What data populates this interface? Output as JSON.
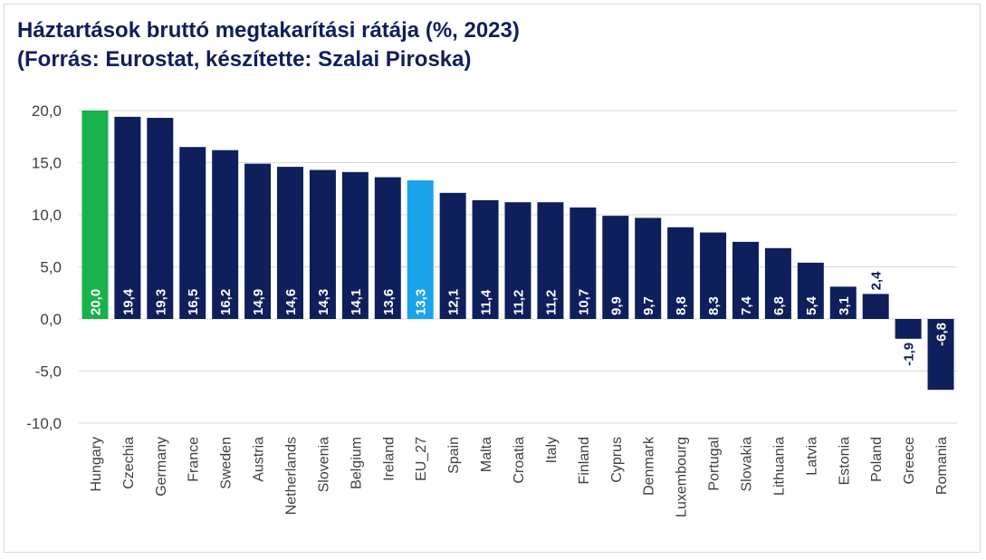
{
  "title_line1": "Háztartások bruttó megtakarítási rátája (%, 2023)",
  "title_line2": "(Forrás: Eurostat, készítette: Szalai Piroska)",
  "colors": {
    "default": "#0f1f5c",
    "highlight_hungary": "#1ab04c",
    "highlight_eu": "#1ba3e8",
    "grid": "#d9d9d9",
    "inside_label": "#ffffff",
    "outside_label": "#0f1f5c"
  },
  "chart_data": {
    "type": "bar",
    "categories": [
      "Hungary",
      "Czechia",
      "Germany",
      "France",
      "Sweden",
      "Austria",
      "Netherlands",
      "Slovenia",
      "Belgium",
      "Ireland",
      "EU_27",
      "Spain",
      "Malta",
      "Croatia",
      "Italy",
      "Finland",
      "Cyprus",
      "Denmark",
      "Luxembourg",
      "Portugal",
      "Slovakia",
      "Lithuania",
      "Latvia",
      "Estonia",
      "Poland",
      "Greece",
      "Romania"
    ],
    "values": [
      20.0,
      19.4,
      19.3,
      16.5,
      16.2,
      14.9,
      14.6,
      14.3,
      14.1,
      13.6,
      13.3,
      12.1,
      11.4,
      11.2,
      11.2,
      10.7,
      9.9,
      9.7,
      8.8,
      8.3,
      7.4,
      6.8,
      5.4,
      3.1,
      2.4,
      -1.9,
      -6.8
    ],
    "data_labels": [
      "20,0",
      "19,4",
      "19,3",
      "16,5",
      "16,2",
      "14,9",
      "14,6",
      "14,3",
      "14,1",
      "13,6",
      "13,3",
      "12,1",
      "11,4",
      "11,2",
      "11,2",
      "10,7",
      "9,9",
      "9,7",
      "8,8",
      "8,3",
      "7,4",
      "6,8",
      "5,4",
      "3,1",
      "2,4",
      "-1,9",
      "-6,8"
    ],
    "highlights": {
      "Hungary": "highlight_hungary",
      "EU_27": "highlight_eu"
    },
    "ylim": [
      -10,
      20
    ],
    "yticks": [
      20,
      15,
      10,
      5,
      0,
      -5,
      -10
    ],
    "ytick_labels": [
      "20,0",
      "15,0",
      "10,0",
      "5,0",
      "0,0",
      "-5,0",
      "-10,0"
    ],
    "grid": true,
    "legend": "none"
  }
}
